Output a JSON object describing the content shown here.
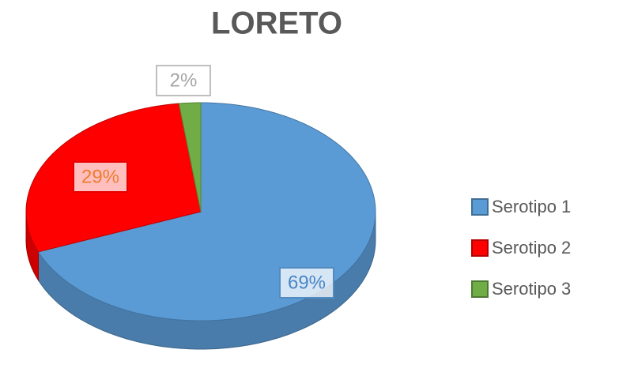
{
  "chart_data": {
    "type": "pie",
    "title": "LORETO",
    "categories": [
      "Serotipo 1",
      "Serotipo 2",
      "Serotipo 3"
    ],
    "values": [
      69,
      29,
      2
    ],
    "value_labels": [
      "69%",
      "29%",
      "2%"
    ],
    "colors": [
      "#5b9bd5",
      "#ff0000",
      "#70ad47"
    ],
    "legend": "right"
  }
}
